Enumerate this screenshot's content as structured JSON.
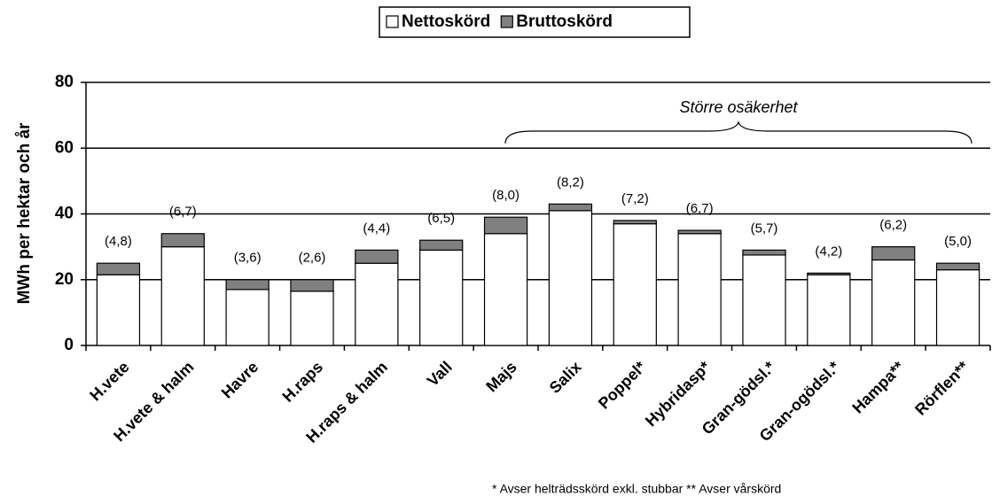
{
  "chart_data": {
    "type": "stacked_bar",
    "y_label": "MWh per hektar och år",
    "categories": [
      "H.vete",
      "H.vete & halm",
      "Havre",
      "H.raps",
      "H.raps & halm",
      "Vall",
      "Majs",
      "Salix",
      "Poppel*",
      "Hybridasp*",
      "Gran-gödsl.*",
      "Gran-ogödsl.*",
      "Hampa**",
      "Rörflen**"
    ],
    "series": [
      {
        "name": "Nettoskörd",
        "color": "#ffffff",
        "values": [
          21.5,
          30,
          17,
          16.5,
          25,
          29,
          34,
          41,
          37,
          34,
          27.5,
          21.5,
          26,
          23
        ]
      },
      {
        "name": "Bruttoskörd",
        "color": "#808080",
        "values": [
          3.5,
          4,
          3,
          3.5,
          4,
          3,
          5,
          2,
          1,
          1,
          1.5,
          0.5,
          4,
          2
        ]
      }
    ],
    "annotations": [
      "(4,8)",
      "(6,7)",
      "(3,6)",
      "(2,6)",
      "(4,4)",
      "(6,5)",
      "(8,0)",
      "(8,2)",
      "(7,2)",
      "(6,7)",
      "(5,7)",
      "(4,2)",
      "(6,2)",
      "(5,0)"
    ],
    "bracket_label": "Större osäkerhet",
    "footnote": "* Avser helträdsskörd exkl. stubbar    ** Avser vårskörd",
    "ylim": [
      0,
      80
    ],
    "yticks": [
      0,
      20,
      40,
      60,
      80
    ],
    "grid": true,
    "legend": "top"
  }
}
